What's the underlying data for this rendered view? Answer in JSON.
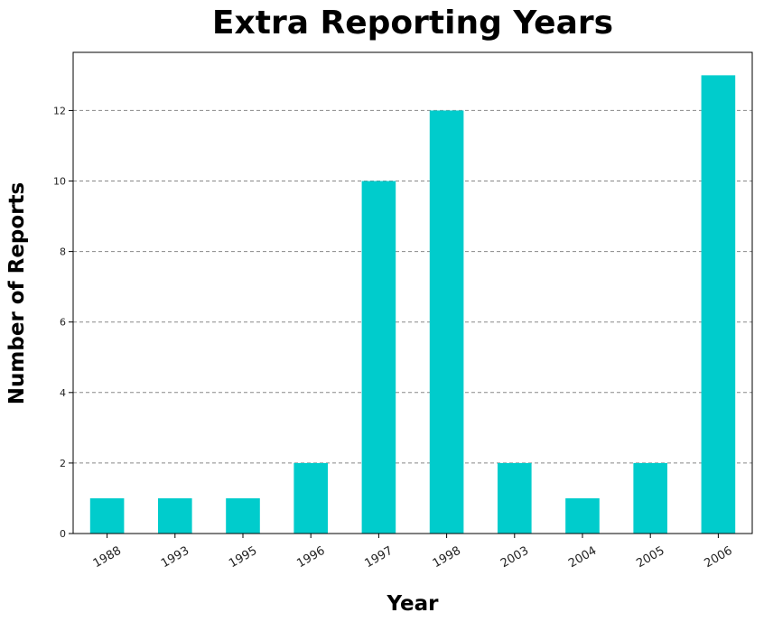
{
  "chart_data": {
    "type": "bar",
    "title": "Extra Reporting Years",
    "xlabel": "Year",
    "ylabel": "Number of Reports",
    "categories": [
      "1988",
      "1993",
      "1995",
      "1996",
      "1997",
      "1998",
      "2003",
      "2004",
      "2005",
      "2006"
    ],
    "values": [
      1,
      1,
      1,
      2,
      10,
      12,
      2,
      1,
      2,
      13
    ],
    "ylim": [
      0,
      13.65
    ],
    "yticks": [
      "0",
      "2",
      "4",
      "6",
      "8",
      "10",
      "12"
    ],
    "grid": "horizontal dashed",
    "bar_color": "#00CCCC",
    "legend": "none"
  }
}
